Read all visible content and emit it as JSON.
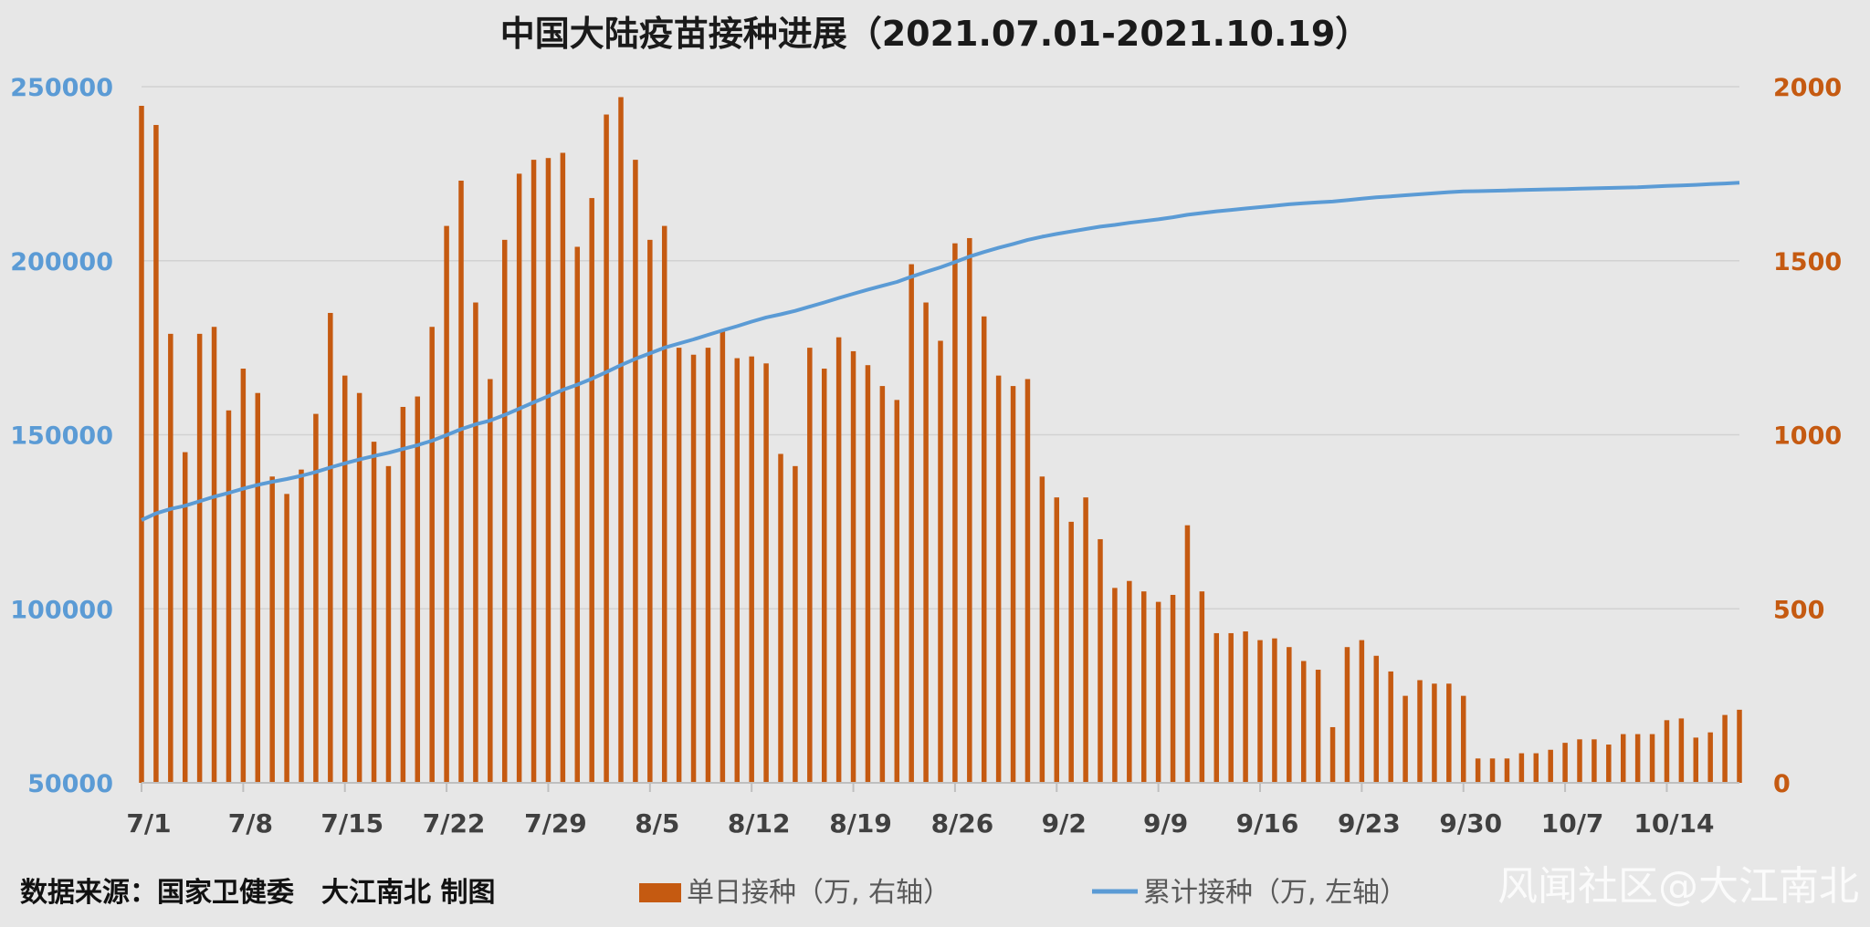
{
  "title": "中国大陆疫苗接种进展（2021.07.01-2021.10.19）",
  "source_note": "数据来源：国家卫健委　大江南北 制图",
  "watermark": "风闻社区@大江南北",
  "colors": {
    "bar": "#c55a11",
    "line": "#5b9bd5",
    "left_axis": "#5b9bd5",
    "right_axis": "#c55a11",
    "grid": "#d2d2d2",
    "background": "#e7e7e7"
  },
  "chart_data": {
    "type": "bar+line",
    "grid": true,
    "legend_position": "bottom",
    "x": [
      "7/1",
      "7/2",
      "7/3",
      "7/4",
      "7/5",
      "7/6",
      "7/7",
      "7/8",
      "7/9",
      "7/10",
      "7/11",
      "7/12",
      "7/13",
      "7/14",
      "7/15",
      "7/16",
      "7/17",
      "7/18",
      "7/19",
      "7/20",
      "7/21",
      "7/22",
      "7/23",
      "7/24",
      "7/25",
      "7/26",
      "7/27",
      "7/28",
      "7/29",
      "7/30",
      "7/31",
      "8/1",
      "8/2",
      "8/3",
      "8/4",
      "8/5",
      "8/6",
      "8/7",
      "8/8",
      "8/9",
      "8/10",
      "8/11",
      "8/12",
      "8/13",
      "8/14",
      "8/15",
      "8/16",
      "8/17",
      "8/18",
      "8/19",
      "8/20",
      "8/21",
      "8/22",
      "8/23",
      "8/24",
      "8/25",
      "8/26",
      "8/27",
      "8/28",
      "8/29",
      "8/30",
      "8/31",
      "9/1",
      "9/2",
      "9/3",
      "9/4",
      "9/5",
      "9/6",
      "9/7",
      "9/8",
      "9/9",
      "9/10",
      "9/11",
      "9/12",
      "9/13",
      "9/14",
      "9/15",
      "9/16",
      "9/17",
      "9/18",
      "9/19",
      "9/20",
      "9/21",
      "9/22",
      "9/23",
      "9/24",
      "9/25",
      "9/26",
      "9/27",
      "9/28",
      "9/29",
      "9/30",
      "10/1",
      "10/2",
      "10/3",
      "10/4",
      "10/5",
      "10/6",
      "10/7",
      "10/8",
      "10/9",
      "10/10",
      "10/11",
      "10/12",
      "10/13",
      "10/14",
      "10/15",
      "10/16",
      "10/17",
      "10/18",
      "10/19"
    ],
    "x_tick_labels": [
      "7/1",
      "7/8",
      "7/15",
      "7/22",
      "7/29",
      "8/5",
      "8/12",
      "8/19",
      "8/26",
      "9/2",
      "9/9",
      "9/16",
      "9/23",
      "9/30",
      "10/7",
      "10/14"
    ],
    "left_axis": {
      "min": 50000,
      "max": 250000,
      "ticks": [
        "50000",
        "100000",
        "150000",
        "200000",
        "250000"
      ]
    },
    "right_axis": {
      "min": 0,
      "max": 2000,
      "ticks": [
        "0",
        "500",
        "1000",
        "1500",
        "2000"
      ]
    },
    "series": [
      {
        "name": "单日接种（万, 右轴）",
        "type": "bar",
        "axis": "right",
        "values": [
          1945,
          1890,
          1290,
          950,
          1290,
          1310,
          1070,
          1190,
          1120,
          880,
          830,
          900,
          1060,
          1350,
          1170,
          1120,
          980,
          910,
          1080,
          1110,
          1310,
          1600,
          1730,
          1380,
          1160,
          1560,
          1750,
          1790,
          1795,
          1810,
          1540,
          1680,
          1920,
          1970,
          1790,
          1560,
          1600,
          1250,
          1230,
          1250,
          1300,
          1220,
          1225,
          1205,
          945,
          910,
          1250,
          1190,
          1280,
          1240,
          1200,
          1140,
          1100,
          1490,
          1380,
          1270,
          1550,
          1565,
          1340,
          1170,
          1140,
          1160,
          880,
          820,
          750,
          820,
          700,
          560,
          580,
          550,
          520,
          540,
          740,
          550,
          430,
          430,
          435,
          410,
          415,
          390,
          350,
          325,
          160,
          390,
          410,
          365,
          320,
          250,
          295,
          285,
          285,
          250,
          70,
          70,
          70,
          85,
          85,
          95,
          115,
          125,
          125,
          110,
          140,
          140,
          140,
          180,
          185,
          130,
          145,
          195,
          210
        ]
      },
      {
        "name": "累计接种（万, 左轴）",
        "type": "line",
        "axis": "left",
        "values": [
          125500,
          127400,
          128700,
          129600,
          130900,
          132200,
          133300,
          134500,
          135600,
          136500,
          137300,
          138200,
          139300,
          140600,
          141800,
          142900,
          143900,
          144800,
          145900,
          147000,
          148300,
          149900,
          151600,
          153000,
          154100,
          155700,
          157500,
          159300,
          161100,
          162900,
          164400,
          166100,
          168000,
          170000,
          171800,
          173400,
          175000,
          176200,
          177400,
          178700,
          180000,
          181200,
          182500,
          183700,
          184600,
          185600,
          186800,
          188000,
          189300,
          190500,
          191700,
          192800,
          193900,
          195400,
          196800,
          198100,
          199600,
          201200,
          202500,
          203700,
          204800,
          206000,
          206900,
          207700,
          208400,
          209100,
          209800,
          210300,
          210900,
          211400,
          211900,
          212500,
          213200,
          213700,
          214200,
          214600,
          215000,
          215400,
          215800,
          216200,
          216500,
          216800,
          217000,
          217400,
          217800,
          218200,
          218500,
          218800,
          219100,
          219400,
          219700,
          219900,
          220000,
          220100,
          220200,
          220300,
          220400,
          220500,
          220600,
          220700,
          220800,
          220900,
          221000,
          221100,
          221300,
          221500,
          221600,
          221800,
          222000,
          222200,
          222400
        ]
      }
    ]
  }
}
